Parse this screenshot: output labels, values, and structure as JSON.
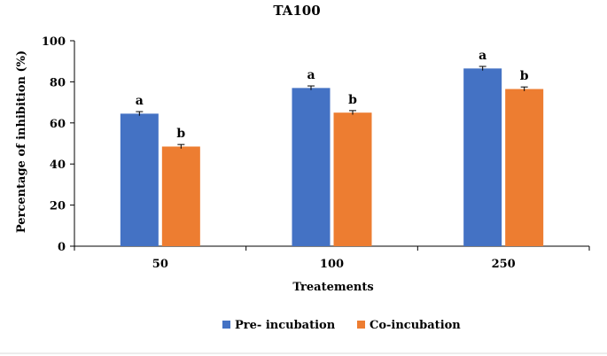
{
  "chart_data": {
    "type": "bar",
    "title": "TA100",
    "xlabel": "Treatements",
    "ylabel": "Percentage of inhibition (%)",
    "categories": [
      "50",
      "100",
      "250"
    ],
    "ylim": [
      0,
      100
    ],
    "yticks": [
      0,
      20,
      40,
      60,
      80,
      100
    ],
    "series": [
      {
        "name": "Pre- incubation",
        "color": "#4472C4",
        "values": [
          64.5,
          77,
          86.5
        ],
        "errors": [
          1.0,
          1.0,
          1.0
        ],
        "annotations": [
          "a",
          "a",
          "a"
        ]
      },
      {
        "name": "Co-incubation",
        "color": "#ED7D31",
        "values": [
          48.5,
          65,
          76.5
        ],
        "errors": [
          1.0,
          1.0,
          1.0
        ],
        "annotations": [
          "b",
          "b",
          "b"
        ]
      }
    ],
    "legend_position": "bottom-center",
    "grid": false
  }
}
